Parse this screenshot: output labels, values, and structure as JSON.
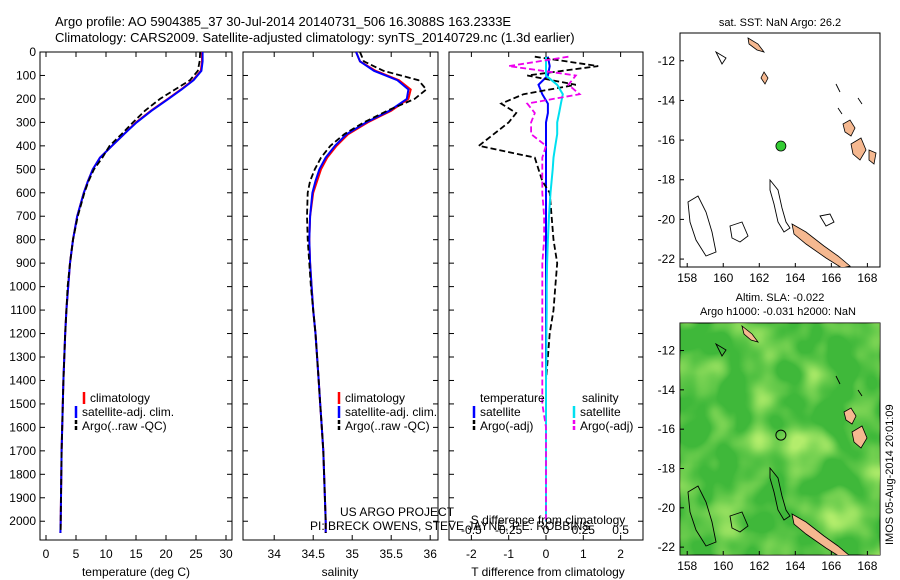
{
  "header": {
    "line1": "Argo profile: AO 5904385_37 30-Jul-2014 20140731_506 16.3088S 163.2333E",
    "line2": "Climatology: CARS2009. Satellite-adjusted climatology: synTS_20140729.nc (1.3d earlier)"
  },
  "footer": {
    "project": "US ARGO PROJECT",
    "pi": "PI: BRECK OWENS, STEVE JAYNE, P.E. ROBBINS",
    "stamp": "IMOS 05-Aug-2014 20:01:09"
  },
  "colors": {
    "climatology": "#ff0000",
    "satellite": "#0000ff",
    "argo": "#000000",
    "satellite_s": "#00e0f0",
    "argo_s": "#ee00ee",
    "land": "#f5b890",
    "marker": "#33cc33"
  },
  "chart_data": [
    {
      "type": "line",
      "id": "temperature",
      "xlabel": "temperature (deg C)",
      "xlim": [
        -1,
        31
      ],
      "xticks": [
        0,
        5,
        10,
        15,
        20,
        25,
        30
      ],
      "ylim": [
        0,
        2080
      ],
      "yticks": [
        0,
        100,
        200,
        300,
        400,
        500,
        600,
        700,
        800,
        900,
        1000,
        1100,
        1200,
        1300,
        1400,
        1500,
        1600,
        1700,
        1800,
        1900,
        2000
      ],
      "depth": [
        0,
        40,
        80,
        120,
        160,
        200,
        250,
        300,
        350,
        400,
        450,
        500,
        550,
        600,
        700,
        800,
        900,
        1000,
        1100,
        1200,
        1300,
        1400,
        1500,
        1600,
        1700,
        1800,
        1900,
        2000,
        2050
      ],
      "legend": [
        "climatology",
        "satellite-adj. clim.",
        "Argo(..raw -QC)"
      ],
      "series": [
        {
          "name": "climatology",
          "color": "#ff0000",
          "values": [
            26,
            26,
            25.8,
            24.5,
            22.5,
            20.3,
            17.5,
            15,
            13,
            11,
            9,
            7.8,
            7,
            6.3,
            5.2,
            4.5,
            4,
            3.7,
            3.4,
            3.2,
            3.05,
            2.9,
            2.8,
            2.7,
            2.6,
            2.55,
            2.5,
            2.45,
            2.4
          ]
        },
        {
          "name": "satellite-adj. clim.",
          "color": "#0000ff",
          "values": [
            26.1,
            26.1,
            25.9,
            24.6,
            22.6,
            20.4,
            17.6,
            15.1,
            13,
            11,
            9,
            7.8,
            7,
            6.3,
            5.2,
            4.5,
            4,
            3.7,
            3.4,
            3.2,
            3.05,
            2.9,
            2.8,
            2.7,
            2.6,
            2.55,
            2.5,
            2.45,
            2.4
          ]
        },
        {
          "name": "Argo(..raw -QC)",
          "color": "#000000",
          "dash": true,
          "values": [
            25.7,
            25.6,
            25.3,
            24,
            21.5,
            19,
            16.5,
            14.5,
            12.6,
            10.6,
            9.4,
            8,
            7.1,
            6.4,
            5.3,
            4.5,
            4,
            3.6,
            3.4,
            3.2,
            3.05,
            2.9,
            2.8,
            2.7,
            2.6,
            2.55,
            2.5,
            2.45,
            2.45
          ]
        }
      ]
    },
    {
      "type": "line",
      "id": "salinity",
      "xlabel": "salinity",
      "xlim": [
        33.6,
        36.1
      ],
      "xticks": [
        34,
        34.5,
        35,
        35.5,
        36
      ],
      "ylim": [
        0,
        2080
      ],
      "depth": [
        0,
        40,
        80,
        120,
        160,
        200,
        250,
        300,
        350,
        400,
        450,
        500,
        550,
        600,
        700,
        800,
        900,
        1000,
        1100,
        1200,
        1300,
        1400,
        1500,
        1600,
        1700,
        1800,
        1900,
        2000,
        2050
      ],
      "legend": [
        "climatology",
        "satellite-adj. clim.",
        "Argo(..raw -QC)"
      ],
      "series": [
        {
          "name": "climatology",
          "color": "#ff0000",
          "values": [
            35.05,
            35.1,
            35.3,
            35.6,
            35.75,
            35.72,
            35.5,
            35.2,
            34.95,
            34.8,
            34.68,
            34.6,
            34.55,
            34.5,
            34.46,
            34.45,
            34.46,
            34.48,
            34.5,
            34.53,
            34.55,
            34.57,
            34.59,
            34.61,
            34.63,
            34.64,
            34.65,
            34.66,
            34.66
          ]
        },
        {
          "name": "satellite-adj. clim.",
          "color": "#0000ff",
          "values": [
            35.05,
            35.1,
            35.28,
            35.58,
            35.72,
            35.7,
            35.48,
            35.18,
            34.93,
            34.78,
            34.66,
            34.58,
            34.53,
            34.49,
            34.46,
            34.45,
            34.46,
            34.48,
            34.5,
            34.53,
            34.55,
            34.57,
            34.59,
            34.61,
            34.63,
            34.64,
            34.65,
            34.66,
            34.66
          ]
        },
        {
          "name": "Argo(..raw -QC)",
          "color": "#000000",
          "dash": true,
          "values": [
            35.1,
            35.15,
            35.4,
            35.85,
            35.95,
            35.8,
            35.45,
            35.15,
            34.9,
            34.72,
            34.6,
            34.52,
            34.46,
            34.43,
            34.42,
            34.43,
            34.45,
            34.47,
            34.5,
            34.53,
            34.55,
            34.57,
            34.59,
            34.61,
            34.63,
            34.64,
            34.65,
            34.66,
            34.66
          ]
        }
      ]
    },
    {
      "type": "line",
      "id": "difference",
      "xlabel": "T difference from climatology",
      "xlabel_top": "S difference from climatology",
      "xlim": [
        -2.6,
        2.6
      ],
      "xticks": [
        -2,
        -1,
        0,
        1,
        2
      ],
      "xticks_top": [
        "-0.5",
        "-0.25",
        "0",
        "0.25",
        "0.5"
      ],
      "xticks_top_pos": [
        -2,
        -1,
        0,
        1,
        2
      ],
      "ylim": [
        0,
        2080
      ],
      "depth": [
        20,
        60,
        100,
        140,
        180,
        220,
        260,
        300,
        350,
        400,
        450,
        500,
        550,
        600,
        700,
        800,
        900,
        1000,
        1100,
        1200,
        1300,
        1400,
        1500,
        1600,
        1700,
        1800,
        1900,
        2000
      ],
      "legend": [
        "temperature",
        "satellite",
        "Argo(-adj)",
        "salinity",
        "satellite",
        "Argo(-adj)"
      ],
      "series": [
        {
          "name": "T satellite",
          "color": "#0000ff",
          "values": [
            0.05,
            0.1,
            0.05,
            -0.2,
            -0.1,
            0.05,
            0.05,
            0,
            0,
            0,
            0,
            0,
            0,
            0,
            0,
            0,
            0,
            0,
            0,
            0,
            0,
            0,
            0,
            0,
            0,
            0,
            0,
            0
          ]
        },
        {
          "name": "T Argo(-adj)",
          "color": "#000000",
          "dash": true,
          "values": [
            -0.3,
            1.4,
            -0.5,
            0.8,
            -0.6,
            -1.2,
            -0.8,
            -1,
            -1.4,
            -1.8,
            -0.3,
            -0.2,
            -0.1,
            0.1,
            0.15,
            0.2,
            0.3,
            0.25,
            0.2,
            0.1,
            0.05,
            0,
            0,
            0,
            0,
            0,
            0,
            0
          ]
        },
        {
          "name": "S satellite",
          "color": "#00e0f0",
          "values": [
            0,
            0,
            0,
            0.3,
            0.45,
            0.4,
            0.35,
            0.3,
            0.3,
            0.25,
            0.2,
            0.18,
            0.15,
            0.12,
            0.08,
            0.05,
            0.03,
            0.02,
            0.02,
            0.01,
            0.01,
            0,
            0,
            0,
            0,
            0,
            0,
            0
          ]
        },
        {
          "name": "S Argo(-adj)",
          "color": "#ee00ee",
          "dash": true,
          "values": [
            0.6,
            -1,
            0.8,
            0.6,
            0.9,
            -0.5,
            -0.3,
            -0.4,
            -0.4,
            0,
            -0.1,
            -0.1,
            -0.1,
            -0.1,
            -0.05,
            -0.05,
            -0.1,
            -0.1,
            -0.1,
            -0.1,
            -0.1,
            -0.1,
            -0.1,
            0,
            0,
            0,
            0,
            0
          ]
        }
      ]
    },
    {
      "type": "map",
      "id": "sst_map",
      "title": "sat. SST: NaN Argo: 26.2",
      "xlim": [
        157.6,
        168.7
      ],
      "ylim": [
        -22.4,
        -10.6
      ],
      "xticks": [
        158,
        160,
        162,
        164,
        166,
        168
      ],
      "yticks": [
        -12,
        -14,
        -16,
        -18,
        -20,
        -22
      ],
      "marker": {
        "lon": 163.2,
        "lat": -16.3
      }
    },
    {
      "type": "map",
      "id": "sla_map",
      "title": "Altim. SLA: -0.022",
      "subtitle": "Argo h1000: -0.031 h2000: NaN",
      "xlim": [
        157.6,
        168.7
      ],
      "ylim": [
        -22.4,
        -10.6
      ],
      "xticks": [
        158,
        160,
        162,
        164,
        166,
        168
      ],
      "yticks": [
        -12,
        -14,
        -16,
        -18,
        -20,
        -22
      ],
      "marker": {
        "lon": 163.2,
        "lat": -16.3
      }
    }
  ]
}
